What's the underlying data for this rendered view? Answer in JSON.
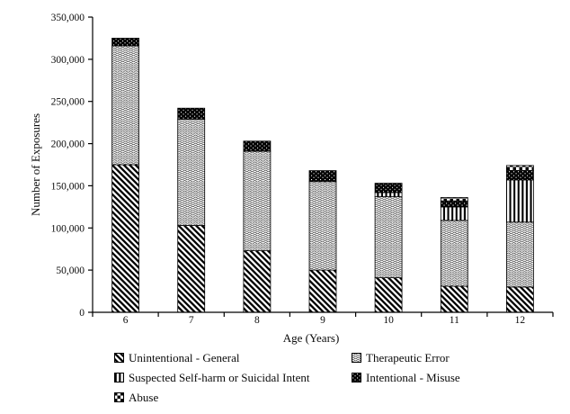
{
  "figure": {
    "background": "#ffffff",
    "text_color": "#0a0a0a",
    "axis_color": "#000000"
  },
  "chart_data": {
    "type": "bar",
    "stacked": true,
    "title": "",
    "xlabel": "Age (Years)",
    "ylabel": "Number of Exposures",
    "categories": [
      "6",
      "7",
      "8",
      "9",
      "10",
      "11",
      "12"
    ],
    "series": [
      {
        "name": "Unintentional - General",
        "pattern": "diagonal-hatch",
        "values": [
          175000,
          103000,
          73000,
          50000,
          41000,
          31000,
          30000
        ]
      },
      {
        "name": "Therapeutic Error",
        "pattern": "wavy",
        "values": [
          141000,
          126000,
          118000,
          105000,
          96000,
          78000,
          77000
        ]
      },
      {
        "name": "Suspected Self-harm or Suicidal Intent",
        "pattern": "vertical-stripes",
        "values": [
          0,
          0,
          0,
          0,
          5000,
          16000,
          50000
        ]
      },
      {
        "name": "Intentional - Misuse",
        "pattern": "black-dotted",
        "values": [
          9000,
          13000,
          12000,
          13000,
          11000,
          7000,
          11000
        ]
      },
      {
        "name": "Abuse",
        "pattern": "checkerboard",
        "values": [
          0,
          0,
          0,
          0,
          0,
          4000,
          6000
        ]
      }
    ],
    "totals": [
      325000,
      242000,
      203000,
      168000,
      153000,
      136000,
      174000
    ],
    "ylim": [
      0,
      350000
    ],
    "ytick_step": 50000,
    "ytick_labels": [
      "0",
      "50,000",
      "100,000",
      "150,000",
      "200,000",
      "250,000",
      "300,000",
      "350,000"
    ],
    "grid": false,
    "legend_position": "bottom"
  }
}
